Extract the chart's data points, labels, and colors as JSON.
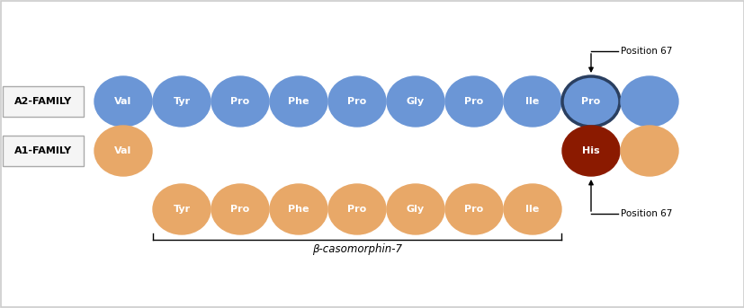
{
  "a2_family_label": "A2-FAMILY",
  "a1_family_label": "A1-FAMILY",
  "a2_amino_acids": [
    "Val",
    "Tyr",
    "Pro",
    "Phe",
    "Pro",
    "Gly",
    "Pro",
    "Ile",
    "Pro"
  ],
  "a1_row1_amino_acids": [
    "Val"
  ],
  "a1_row2_amino_acids": [
    "Tyr",
    "Pro",
    "Phe",
    "Pro",
    "Gly",
    "Pro",
    "Ile"
  ],
  "a1_special": "His",
  "bcm7_label": "β-casomorphin-7",
  "position67_label": "Position 67",
  "a2_color": "#6B96D6",
  "a2_edge_color": "#6B96D6",
  "a2_highlight_outline": "#2a3f60",
  "a2_text_color": "#ffffff",
  "a1_color": "#E8A868",
  "a1_edge_color": "#E8A868",
  "a1_text_color": "#ffffff",
  "a1_his_color": "#8B1A00",
  "a1_his_text_color": "#ffffff",
  "background_color": "#ffffff",
  "label_box_color": "#f5f5f5",
  "label_box_edge": "#aaaaaa",
  "border_color": "#cccccc"
}
